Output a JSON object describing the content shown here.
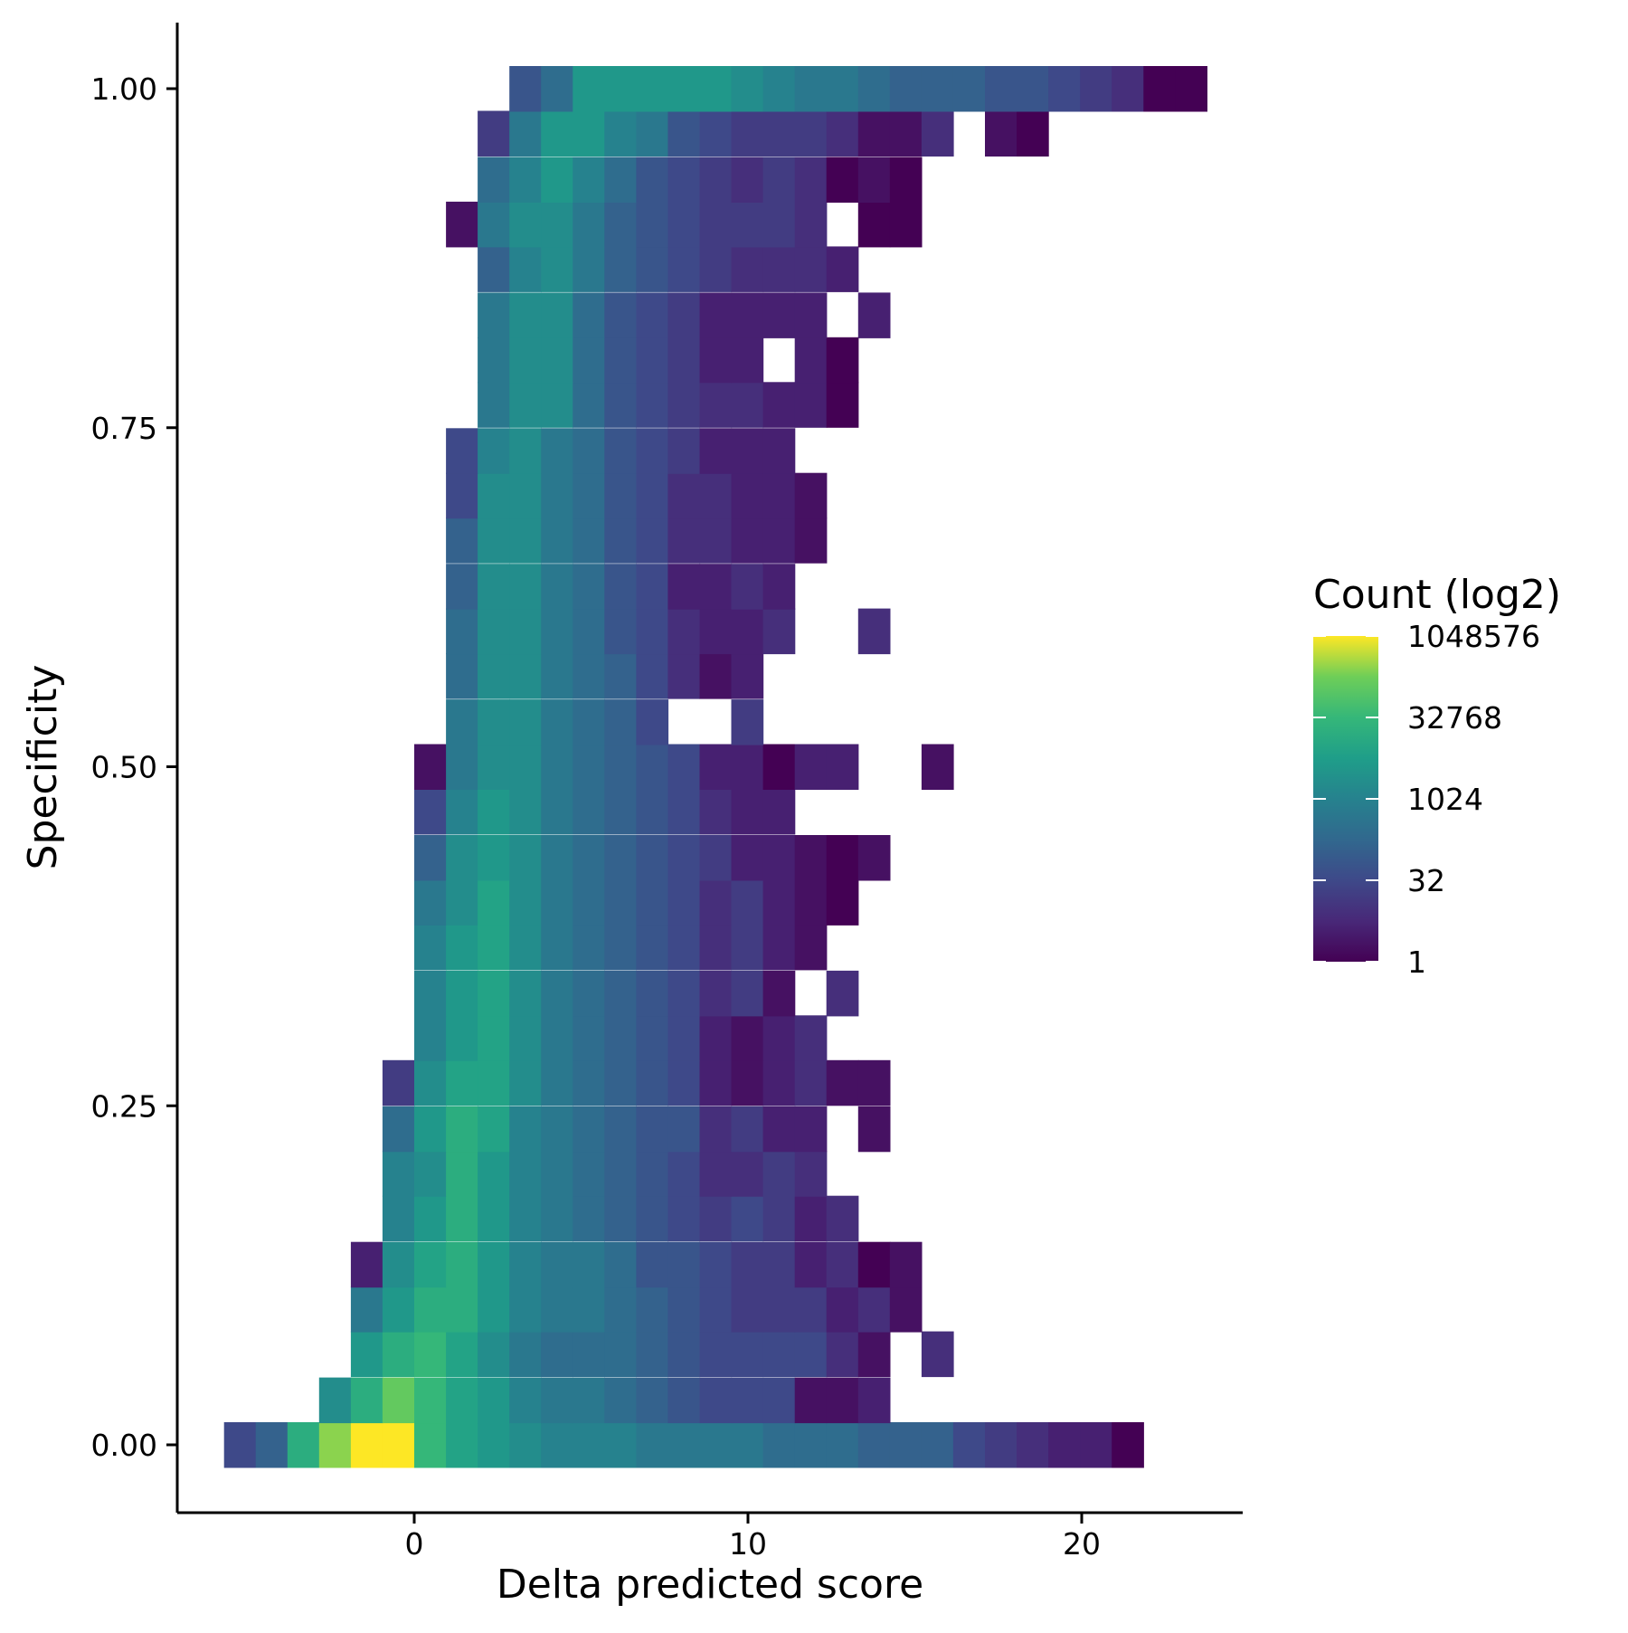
{
  "chart_data": {
    "type": "heatmap",
    "xlabel": "Delta predicted score",
    "ylabel": "Specificity",
    "xlim": [
      -7.1,
      24.9
    ],
    "ylim": [
      -0.05,
      1.05
    ],
    "x_ticks": [
      {
        "value": 0,
        "label": "0"
      },
      {
        "value": 10,
        "label": "10"
      },
      {
        "value": 20,
        "label": "20"
      }
    ],
    "y_ticks": [
      {
        "value": 0.0,
        "label": "0.00"
      },
      {
        "value": 0.25,
        "label": "0.25"
      },
      {
        "value": 0.5,
        "label": "0.50"
      },
      {
        "value": 0.75,
        "label": "0.75"
      },
      {
        "value": 1.0,
        "label": "1.00"
      }
    ],
    "grid": false,
    "bin_width_x": 0.95,
    "bin_height_y": 0.0333,
    "x_bin_start": -5.7,
    "y_bin_start": 0.0,
    "legend": {
      "title": "Count (log2)",
      "scale": "log2",
      "min_exp": 0,
      "max_exp": 20,
      "placement": "right",
      "breaks": [
        {
          "exp": 20,
          "label": "1048576"
        },
        {
          "exp": 15,
          "label": "32768"
        },
        {
          "exp": 10,
          "label": "1024"
        },
        {
          "exp": 5,
          "label": "32"
        },
        {
          "exp": 0,
          "label": "1"
        }
      ]
    },
    "note_value_format": "log2(count) per bin; rows listed by specificity bin starting at 0.00",
    "rows": [
      {
        "y": 0.0,
        "start_col": 0,
        "values": [
          5,
          7,
          14,
          18,
          20,
          20,
          15,
          13,
          12,
          11,
          10,
          10,
          10,
          9,
          9,
          9,
          9,
          8,
          8,
          8,
          7,
          7,
          7,
          5,
          4,
          3,
          2,
          2,
          0
        ]
      },
      {
        "y": 0.033,
        "start_col": 3,
        "values": [
          11,
          14,
          17,
          15,
          13,
          12,
          10,
          9,
          9,
          8,
          7,
          6,
          5,
          5,
          5,
          1,
          1,
          2
        ]
      },
      {
        "y": 0.067,
        "start_col": 4,
        "values": [
          12,
          14,
          15,
          13,
          11,
          9,
          8,
          8,
          8,
          7,
          6,
          5,
          5,
          5,
          5,
          3,
          1,
          -1,
          3
        ]
      },
      {
        "y": 0.1,
        "start_col": 4,
        "values": [
          9,
          12,
          14,
          14,
          12,
          10,
          9,
          9,
          8,
          7,
          6,
          5,
          4,
          4,
          4,
          2,
          3,
          1
        ]
      },
      {
        "y": 0.133,
        "start_col": 4,
        "values": [
          2,
          11,
          13,
          14,
          12,
          10,
          9,
          9,
          8,
          6,
          6,
          5,
          4,
          4,
          2,
          3,
          0,
          1
        ]
      },
      {
        "y": 0.167,
        "start_col": 5,
        "values": [
          10,
          12,
          14,
          12,
          10,
          9,
          8,
          7,
          6,
          5,
          4,
          5,
          4,
          2,
          3
        ]
      },
      {
        "y": 0.2,
        "start_col": 5,
        "values": [
          10,
          11,
          14,
          12,
          10,
          9,
          8,
          7,
          6,
          5,
          3,
          3,
          4,
          3
        ]
      },
      {
        "y": 0.233,
        "start_col": 5,
        "values": [
          8,
          12,
          14,
          13,
          10,
          9,
          8,
          7,
          6,
          6,
          3,
          4,
          2,
          2,
          -1,
          1
        ]
      },
      {
        "y": 0.267,
        "start_col": 5,
        "values": [
          4,
          11,
          13,
          13,
          11,
          9,
          8,
          7,
          6,
          5,
          2,
          1,
          2,
          3,
          1,
          1
        ]
      },
      {
        "y": 0.3,
        "start_col": 6,
        "values": [
          10,
          12,
          13,
          11,
          9,
          8,
          7,
          6,
          5,
          2,
          1,
          2,
          3
        ]
      },
      {
        "y": 0.333,
        "start_col": 6,
        "values": [
          10,
          12,
          13,
          11,
          9,
          8,
          7,
          6,
          5,
          3,
          4,
          1,
          -1,
          3
        ]
      },
      {
        "y": 0.367,
        "start_col": 6,
        "values": [
          10,
          12,
          13,
          11,
          9,
          8,
          7,
          6,
          5,
          3,
          4,
          2,
          1
        ]
      },
      {
        "y": 0.4,
        "start_col": 6,
        "values": [
          9,
          11,
          13,
          11,
          9,
          8,
          7,
          6,
          5,
          3,
          4,
          2,
          1,
          0
        ]
      },
      {
        "y": 0.433,
        "start_col": 6,
        "values": [
          7,
          11,
          12,
          11,
          9,
          8,
          7,
          6,
          5,
          4,
          2,
          2,
          1,
          0,
          1
        ]
      },
      {
        "y": 0.467,
        "start_col": 6,
        "values": [
          5,
          10,
          12,
          11,
          9,
          8,
          7,
          6,
          5,
          3,
          2,
          2
        ]
      },
      {
        "y": 0.5,
        "start_col": 6,
        "values": [
          1,
          9,
          11,
          11,
          9,
          8,
          7,
          6,
          5,
          2,
          2,
          0,
          2,
          2,
          -1,
          -1,
          1
        ]
      },
      {
        "y": 0.533,
        "start_col": 7,
        "values": [
          9,
          11,
          11,
          9,
          8,
          7,
          5,
          -1,
          -1,
          4
        ]
      },
      {
        "y": 0.567,
        "start_col": 7,
        "values": [
          8,
          11,
          11,
          9,
          8,
          7,
          5,
          3,
          1,
          2
        ]
      },
      {
        "y": 0.6,
        "start_col": 7,
        "values": [
          8,
          11,
          11,
          9,
          8,
          6,
          5,
          3,
          2,
          2,
          3,
          -1,
          -1,
          3
        ]
      },
      {
        "y": 0.633,
        "start_col": 7,
        "values": [
          7,
          11,
          11,
          9,
          8,
          6,
          5,
          2,
          2,
          3,
          2
        ]
      },
      {
        "y": 0.667,
        "start_col": 7,
        "values": [
          7,
          11,
          11,
          9,
          8,
          6,
          5,
          3,
          3,
          2,
          2,
          1
        ]
      },
      {
        "y": 0.7,
        "start_col": 7,
        "values": [
          5,
          11,
          11,
          9,
          8,
          6,
          5,
          3,
          3,
          2,
          2,
          1
        ]
      },
      {
        "y": 0.733,
        "start_col": 7,
        "values": [
          5,
          10,
          11,
          9,
          8,
          6,
          5,
          4,
          2,
          2,
          2
        ]
      },
      {
        "y": 0.767,
        "start_col": 8,
        "values": [
          9,
          11,
          11,
          8,
          6,
          5,
          4,
          3,
          3,
          2,
          2,
          0
        ]
      },
      {
        "y": 0.8,
        "start_col": 8,
        "values": [
          9,
          11,
          11,
          8,
          6,
          5,
          4,
          2,
          2,
          -1,
          2,
          0
        ]
      },
      {
        "y": 0.833,
        "start_col": 8,
        "values": [
          9,
          11,
          11,
          8,
          6,
          5,
          4,
          2,
          2,
          2,
          2,
          -1,
          2
        ]
      },
      {
        "y": 0.867,
        "start_col": 8,
        "values": [
          7,
          10,
          11,
          9,
          7,
          6,
          5,
          4,
          3,
          3,
          3,
          2
        ]
      },
      {
        "y": 0.9,
        "start_col": 7,
        "values": [
          1,
          9,
          11,
          11,
          9,
          7,
          6,
          5,
          4,
          4,
          4,
          3,
          -1,
          0,
          0
        ]
      },
      {
        "y": 0.933,
        "start_col": 8,
        "values": [
          8,
          10,
          12,
          10,
          8,
          6,
          5,
          4,
          3,
          4,
          3,
          0,
          1,
          0
        ]
      },
      {
        "y": 0.967,
        "start_col": 8,
        "values": [
          4,
          9,
          12,
          12,
          10,
          9,
          6,
          5,
          4,
          4,
          4,
          3,
          1,
          1,
          3,
          -1,
          1,
          0
        ]
      },
      {
        "y": 1.0,
        "start_col": 9,
        "values": [
          6,
          8,
          12,
          12,
          12,
          12,
          12,
          11,
          10,
          9,
          9,
          8,
          7,
          7,
          7,
          6,
          6,
          5,
          4,
          3,
          0,
          0
        ]
      }
    ]
  }
}
